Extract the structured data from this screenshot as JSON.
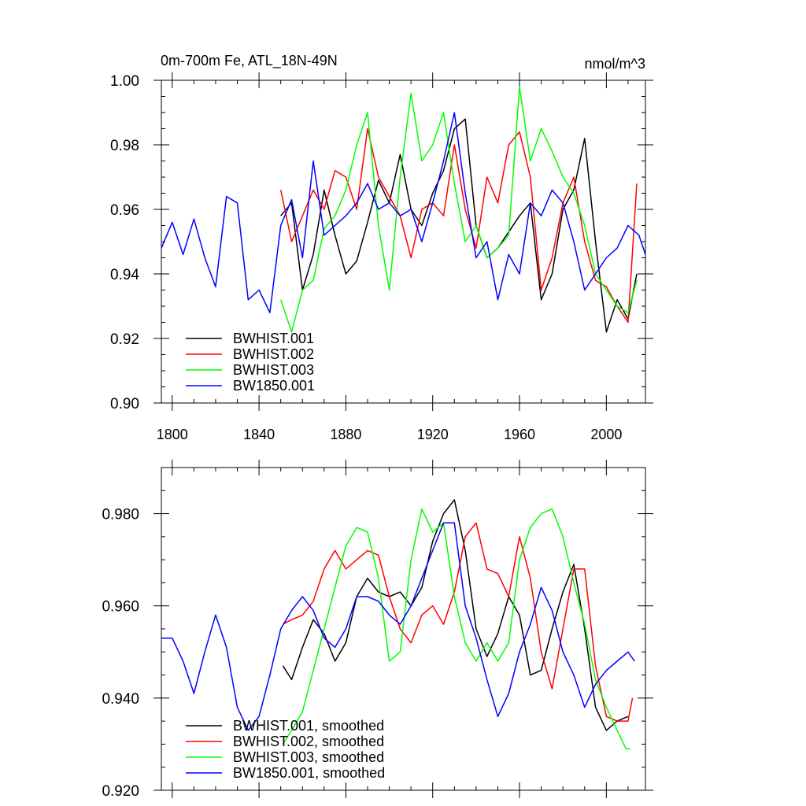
{
  "chart_data": [
    {
      "type": "line",
      "title": "0m-700m Fe, ATL_18N-49N",
      "units": "nmol/m^3",
      "xlim": [
        1795,
        2018
      ],
      "ylim": [
        0.9,
        1.0
      ],
      "xticks": [
        1800,
        1840,
        1880,
        1920,
        1960,
        2000
      ],
      "xtick_labels": [
        "1800",
        "1840",
        "1880",
        "1920",
        "1960",
        "2000"
      ],
      "yticks": [
        0.9,
        0.92,
        0.94,
        0.96,
        0.98,
        1.0
      ],
      "ytick_labels": [
        "0.90",
        "0.92",
        "0.94",
        "0.96",
        "0.98",
        "1.00"
      ],
      "legend_position": "bottom-left",
      "series": [
        {
          "name": "BWHIST.001",
          "color": "#000000",
          "x": [
            1850,
            1855,
            1860,
            1865,
            1870,
            1875,
            1880,
            1885,
            1890,
            1895,
            1900,
            1905,
            1910,
            1915,
            1920,
            1925,
            1930,
            1935,
            1940,
            1945,
            1950,
            1955,
            1960,
            1965,
            1970,
            1975,
            1980,
            1985,
            1990,
            1995,
            2000,
            2005,
            2010,
            2014
          ],
          "values": [
            0.958,
            0.962,
            0.935,
            0.946,
            0.966,
            0.952,
            0.94,
            0.944,
            0.956,
            0.969,
            0.962,
            0.977,
            0.96,
            0.955,
            0.965,
            0.972,
            0.985,
            0.988,
            0.955,
            0.945,
            0.948,
            0.953,
            0.958,
            0.962,
            0.932,
            0.94,
            0.96,
            0.966,
            0.982,
            0.95,
            0.922,
            0.932,
            0.926,
            0.94
          ]
        },
        {
          "name": "BWHIST.002",
          "color": "#ff0000",
          "x": [
            1850,
            1855,
            1860,
            1865,
            1870,
            1875,
            1880,
            1885,
            1890,
            1895,
            1900,
            1905,
            1910,
            1915,
            1920,
            1925,
            1930,
            1935,
            1940,
            1945,
            1950,
            1955,
            1960,
            1965,
            1970,
            1975,
            1980,
            1985,
            1990,
            1995,
            2000,
            2005,
            2010,
            2014
          ],
          "values": [
            0.966,
            0.95,
            0.958,
            0.966,
            0.96,
            0.972,
            0.97,
            0.96,
            0.985,
            0.97,
            0.964,
            0.958,
            0.945,
            0.96,
            0.962,
            0.958,
            0.98,
            0.96,
            0.948,
            0.97,
            0.962,
            0.98,
            0.984,
            0.97,
            0.935,
            0.945,
            0.962,
            0.97,
            0.95,
            0.938,
            0.936,
            0.93,
            0.925,
            0.968
          ]
        },
        {
          "name": "BWHIST.003",
          "color": "#00ff00",
          "x": [
            1850,
            1855,
            1860,
            1865,
            1870,
            1875,
            1880,
            1885,
            1890,
            1895,
            1900,
            1905,
            1910,
            1915,
            1920,
            1925,
            1930,
            1935,
            1940,
            1945,
            1950,
            1955,
            1960,
            1965,
            1970,
            1975,
            1980,
            1985,
            1990,
            1995,
            2000,
            2005,
            2010,
            2014
          ],
          "values": [
            0.932,
            0.922,
            0.935,
            0.938,
            0.954,
            0.958,
            0.966,
            0.98,
            0.99,
            0.955,
            0.935,
            0.97,
            0.996,
            0.975,
            0.98,
            0.99,
            0.968,
            0.95,
            0.955,
            0.945,
            0.948,
            0.952,
            0.998,
            0.975,
            0.985,
            0.978,
            0.97,
            0.965,
            0.955,
            0.94,
            0.935,
            0.93,
            0.928,
            0.938
          ]
        },
        {
          "name": "BW1850.001",
          "color": "#0000ff",
          "x": [
            1795,
            1800,
            1805,
            1810,
            1815,
            1820,
            1825,
            1830,
            1835,
            1840,
            1845,
            1850,
            1855,
            1860,
            1865,
            1870,
            1875,
            1880,
            1885,
            1890,
            1895,
            1900,
            1905,
            1910,
            1915,
            1920,
            1925,
            1930,
            1935,
            1940,
            1945,
            1950,
            1955,
            1960,
            1965,
            1970,
            1975,
            1980,
            1985,
            1990,
            1995,
            2000,
            2005,
            2010,
            2015,
            2018
          ],
          "values": [
            0.948,
            0.956,
            0.946,
            0.957,
            0.945,
            0.936,
            0.964,
            0.962,
            0.932,
            0.935,
            0.928,
            0.955,
            0.963,
            0.945,
            0.975,
            0.952,
            0.955,
            0.958,
            0.962,
            0.968,
            0.96,
            0.962,
            0.958,
            0.96,
            0.95,
            0.962,
            0.975,
            0.99,
            0.965,
            0.945,
            0.95,
            0.932,
            0.946,
            0.94,
            0.962,
            0.958,
            0.966,
            0.962,
            0.95,
            0.935,
            0.94,
            0.945,
            0.948,
            0.955,
            0.952,
            0.946
          ]
        }
      ]
    },
    {
      "type": "line",
      "xlim": [
        1795,
        2018
      ],
      "ylim": [
        0.92,
        0.99
      ],
      "xticks": [
        1800,
        1840,
        1880,
        1920,
        1960,
        2000
      ],
      "yticks": [
        0.92,
        0.94,
        0.96,
        0.98
      ],
      "ytick_labels": [
        "0.920",
        "0.940",
        "0.960",
        "0.980"
      ],
      "legend_position": "bottom-left",
      "series": [
        {
          "name": "BWHIST.001, smoothed",
          "color": "#000000",
          "x": [
            1851,
            1855,
            1860,
            1865,
            1870,
            1875,
            1880,
            1885,
            1890,
            1895,
            1900,
            1905,
            1910,
            1915,
            1920,
            1925,
            1930,
            1935,
            1940,
            1945,
            1950,
            1955,
            1960,
            1965,
            1970,
            1975,
            1980,
            1985,
            1990,
            1995,
            2000,
            2005,
            2010
          ],
          "values": [
            0.947,
            0.944,
            0.951,
            0.957,
            0.954,
            0.948,
            0.952,
            0.962,
            0.966,
            0.963,
            0.962,
            0.963,
            0.96,
            0.964,
            0.974,
            0.98,
            0.983,
            0.972,
            0.955,
            0.949,
            0.954,
            0.962,
            0.958,
            0.945,
            0.946,
            0.955,
            0.963,
            0.969,
            0.955,
            0.938,
            0.933,
            0.935,
            0.936
          ]
        },
        {
          "name": "BWHIST.002, smoothed",
          "color": "#ff0000",
          "x": [
            1851,
            1855,
            1860,
            1865,
            1870,
            1875,
            1880,
            1885,
            1890,
            1895,
            1900,
            1905,
            1910,
            1915,
            1920,
            1925,
            1930,
            1935,
            1940,
            1945,
            1950,
            1955,
            1960,
            1965,
            1970,
            1975,
            1980,
            1985,
            1990,
            1995,
            2000,
            2005,
            2010,
            2012
          ],
          "values": [
            0.956,
            0.957,
            0.958,
            0.961,
            0.968,
            0.972,
            0.968,
            0.97,
            0.972,
            0.971,
            0.962,
            0.955,
            0.952,
            0.958,
            0.96,
            0.956,
            0.963,
            0.975,
            0.978,
            0.968,
            0.967,
            0.962,
            0.975,
            0.966,
            0.95,
            0.942,
            0.955,
            0.968,
            0.968,
            0.947,
            0.936,
            0.935,
            0.935,
            0.94
          ]
        },
        {
          "name": "BWHIST.003, smoothed",
          "color": "#00ff00",
          "x": [
            1851,
            1855,
            1860,
            1865,
            1870,
            1875,
            1880,
            1885,
            1890,
            1895,
            1900,
            1905,
            1910,
            1915,
            1920,
            1925,
            1930,
            1935,
            1940,
            1945,
            1950,
            1955,
            1960,
            1965,
            1970,
            1975,
            1980,
            1985,
            1990,
            1995,
            2000,
            2005,
            2009,
            2011
          ],
          "values": [
            0.93,
            0.933,
            0.937,
            0.946,
            0.955,
            0.964,
            0.973,
            0.977,
            0.976,
            0.966,
            0.948,
            0.95,
            0.97,
            0.981,
            0.976,
            0.978,
            0.962,
            0.952,
            0.948,
            0.952,
            0.948,
            0.952,
            0.97,
            0.977,
            0.98,
            0.981,
            0.975,
            0.965,
            0.956,
            0.944,
            0.938,
            0.933,
            0.929,
            0.929
          ]
        },
        {
          "name": "BW1850.001, smoothed",
          "color": "#0000ff",
          "x": [
            1795,
            1800,
            1805,
            1810,
            1815,
            1820,
            1825,
            1830,
            1835,
            1840,
            1845,
            1850,
            1855,
            1860,
            1865,
            1870,
            1875,
            1880,
            1885,
            1890,
            1895,
            1900,
            1905,
            1910,
            1915,
            1920,
            1925,
            1930,
            1935,
            1940,
            1945,
            1950,
            1955,
            1960,
            1965,
            1970,
            1975,
            1980,
            1985,
            1990,
            1995,
            2000,
            2005,
            2010,
            2013
          ],
          "values": [
            0.953,
            0.953,
            0.948,
            0.941,
            0.95,
            0.958,
            0.951,
            0.938,
            0.933,
            0.936,
            0.945,
            0.955,
            0.959,
            0.962,
            0.959,
            0.953,
            0.951,
            0.955,
            0.962,
            0.962,
            0.961,
            0.958,
            0.956,
            0.96,
            0.966,
            0.972,
            0.978,
            0.978,
            0.96,
            0.953,
            0.944,
            0.936,
            0.941,
            0.95,
            0.956,
            0.964,
            0.959,
            0.95,
            0.945,
            0.938,
            0.943,
            0.946,
            0.948,
            0.95,
            0.948
          ]
        }
      ]
    }
  ]
}
